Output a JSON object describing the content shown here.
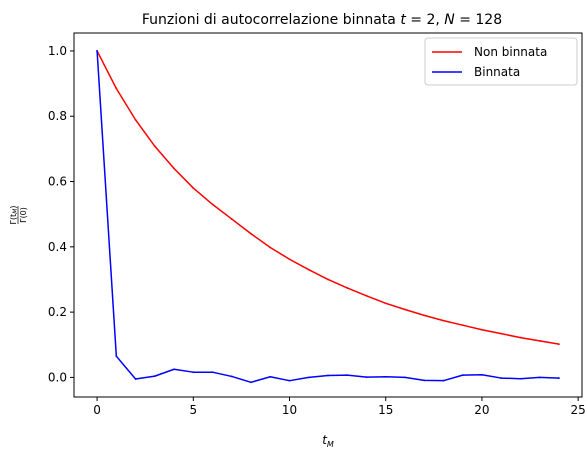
{
  "chart_data": {
    "type": "line",
    "title": "Funzioni di autocorrelazione binnata t = 2, N = 128",
    "title_parts": {
      "prefix": "Funzioni di autocorrelazione binnata ",
      "t_symbol": "t",
      "t_eq": " = 2, ",
      "n_symbol": "N",
      "n_eq": " = 128"
    },
    "xlabel": "t_M",
    "xlabel_parts": {
      "main": "t",
      "sub": "M"
    },
    "ylabel": "Γ(t_M) / Γ(0)",
    "ylabel_parts": {
      "numerator": "Γ(t",
      "numerator_sub": "M",
      "numerator_end": ")",
      "denominator": "Γ(0)"
    },
    "xlim": [
      -1.2,
      25.2
    ],
    "ylim": [
      -0.06,
      1.055
    ],
    "x_ticks": [
      0,
      5,
      10,
      15,
      20,
      25
    ],
    "x_tick_labels": [
      "0",
      "5",
      "10",
      "15",
      "20",
      "25"
    ],
    "y_ticks": [
      0.0,
      0.2,
      0.4,
      0.6,
      0.8,
      1.0
    ],
    "y_tick_labels": [
      "0.0",
      "0.2",
      "0.4",
      "0.6",
      "0.8",
      "1.0"
    ],
    "grid": false,
    "legend_position": "top-right",
    "x": [
      0,
      1,
      2,
      3,
      4,
      5,
      6,
      7,
      8,
      9,
      10,
      11,
      12,
      13,
      14,
      15,
      16,
      17,
      18,
      19,
      20,
      21,
      22,
      23,
      24
    ],
    "series": [
      {
        "name": "Non binnata",
        "color": "#ff0000",
        "values": [
          1.0,
          0.885,
          0.789,
          0.708,
          0.64,
          0.58,
          0.53,
          0.485,
          0.44,
          0.398,
          0.362,
          0.33,
          0.3,
          0.274,
          0.25,
          0.227,
          0.208,
          0.19,
          0.174,
          0.16,
          0.146,
          0.134,
          0.122,
          0.112,
          0.102
        ]
      },
      {
        "name": "Binnata",
        "color": "#0000ff",
        "values": [
          1.0,
          0.065,
          -0.005,
          0.004,
          0.025,
          0.016,
          0.016,
          0.003,
          -0.015,
          0.002,
          -0.01,
          0.0,
          0.006,
          0.007,
          0.001,
          0.002,
          0.0,
          -0.009,
          -0.01,
          0.007,
          0.008,
          -0.002,
          -0.004,
          0.0,
          -0.002
        ]
      }
    ]
  }
}
